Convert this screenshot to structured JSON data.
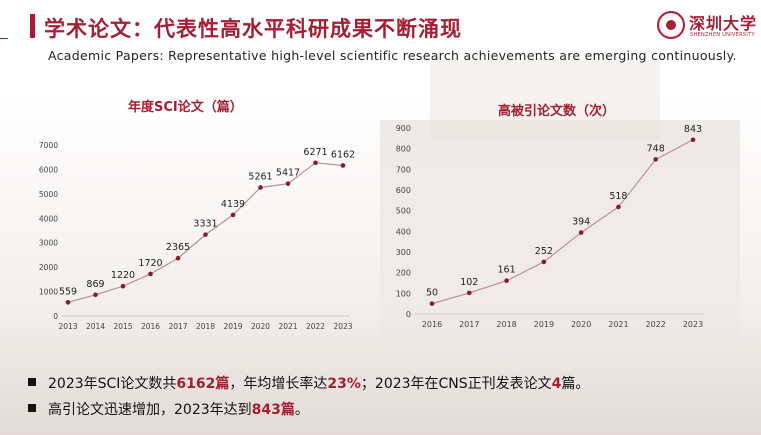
{
  "header": {
    "title": "学术论文：代表性高水平科研成果不断涌现",
    "subtitle": "Academic Papers: Representative high-level scientific research achievements are emerging continuously."
  },
  "logo": {
    "name": "深圳大学",
    "english": "SHENZHEN UNIVERSITY"
  },
  "colors": {
    "accent": "#a51f34",
    "line": "#b88f96",
    "marker": "#8b1a2c"
  },
  "chart_data": [
    {
      "type": "line",
      "title": "年度SCI论文（篇）",
      "x": [
        "2013",
        "2014",
        "2015",
        "2016",
        "2017",
        "2018",
        "2019",
        "2020",
        "2021",
        "2022",
        "2023"
      ],
      "values": [
        559,
        869,
        1220,
        1720,
        2365,
        3331,
        4139,
        5261,
        5417,
        6271,
        6162
      ],
      "data_labels": [
        "559",
        "869",
        "1220",
        "1720",
        "2365",
        "3331",
        "4139",
        "5261",
        "5417",
        "6271",
        "6162"
      ],
      "yticks": [
        "0",
        "1000",
        "2000",
        "3000",
        "4000",
        "5000",
        "6000",
        "7000"
      ],
      "ylim": [
        0,
        7000
      ],
      "grid": false
    },
    {
      "type": "line",
      "title": "高被引论文数（次）",
      "x": [
        "2016",
        "2017",
        "2018",
        "2019",
        "2020",
        "2021",
        "2022",
        "2023"
      ],
      "values": [
        50,
        102,
        161,
        252,
        394,
        518,
        748,
        843
      ],
      "data_labels": [
        "50",
        "102",
        "161",
        "252",
        "394",
        "518",
        "748",
        "843"
      ],
      "yticks": [
        "0",
        "100",
        "200",
        "300",
        "400",
        "500",
        "600",
        "700",
        "800",
        "900"
      ],
      "ylim": [
        0,
        900
      ],
      "grid": false
    }
  ],
  "bullets": [
    {
      "parts": [
        {
          "text": "2023年SCI论文数共",
          "hl": false
        },
        {
          "text": "6162篇",
          "hl": true
        },
        {
          "text": "，年均增长率达",
          "hl": false
        },
        {
          "text": "23%",
          "hl": true
        },
        {
          "text": "；2023年在CNS正刊发表论文",
          "hl": false
        },
        {
          "text": "4",
          "hl": true
        },
        {
          "text": "篇。",
          "hl": false
        }
      ]
    },
    {
      "parts": [
        {
          "text": "高引论文迅速增加，2023年达到",
          "hl": false
        },
        {
          "text": "843篇",
          "hl": true
        },
        {
          "text": "。",
          "hl": false
        }
      ]
    }
  ]
}
